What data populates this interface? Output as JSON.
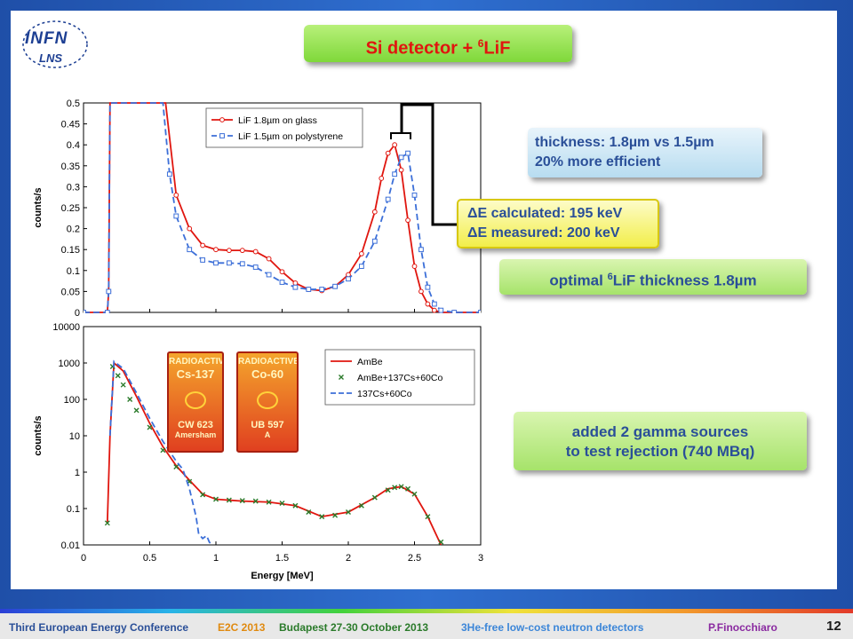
{
  "slide": {
    "title_main": "Si detector + ",
    "title_sup": "6",
    "title_end": "LiF",
    "logo": {
      "top": "INFN",
      "bottom": "LNS"
    },
    "slide_number": "12"
  },
  "callouts": {
    "thickness_line1": "thickness: 1.8µm vs 1.5µm",
    "thickness_line2": "20% more efficient",
    "delta_line1": "ΔE calculated: 195 keV",
    "delta_line2": "ΔE measured: 200 keV",
    "optimal_pre": "optimal ",
    "optimal_sup": "6",
    "optimal_post": "LiF thickness 1.8µm",
    "gamma_line1": "added 2 gamma sources",
    "gamma_line2": "to test rejection (740 MBq)"
  },
  "source_labels": [
    {
      "header": "RADIOACTIVE",
      "isotope": "Cs-137",
      "code": "CW 623",
      "sub": "Amersham"
    },
    {
      "header": "RADIOACTIVE",
      "isotope": "Co-60",
      "code": "UB 597",
      "sub": "A"
    }
  ],
  "footer": {
    "conference": "Third European Energy Conference",
    "short": "E2C 2013",
    "place": "Budapest 27-30 October 2013",
    "talk": "3He-free low-cost neutron detectors",
    "author": "P.Finocchiaro"
  },
  "colors": {
    "red": "#e0160f",
    "blue": "#3c6fd8",
    "green": "#2a7a2a",
    "text_blue": "#2a4f98"
  },
  "chart_data": [
    {
      "type": "line",
      "ylabel": "counts/s",
      "xlim": [
        0,
        3
      ],
      "ylim": [
        0,
        0.5
      ],
      "yticks": [
        "0",
        "0.05",
        "0.1",
        "0.15",
        "0.2",
        "0.25",
        "0.3",
        "0.35",
        "0.4",
        "0.45",
        "0.5"
      ],
      "legend_position": "top-left",
      "series": [
        {
          "name": "LiF 1.8µm on glass",
          "color": "#e0160f",
          "dash": "solid",
          "marker": "circle",
          "x": [
            0.0,
            0.18,
            0.19,
            0.2,
            0.62,
            0.7,
            0.8,
            0.9,
            1.0,
            1.1,
            1.2,
            1.3,
            1.4,
            1.5,
            1.6,
            1.7,
            1.8,
            1.9,
            2.0,
            2.1,
            2.2,
            2.25,
            2.3,
            2.35,
            2.4,
            2.45,
            2.5,
            2.55,
            2.6,
            2.65,
            2.7,
            2.8,
            3.0
          ],
          "y": [
            0.0,
            0.0,
            0.05,
            0.5,
            0.5,
            0.28,
            0.2,
            0.16,
            0.15,
            0.148,
            0.148,
            0.145,
            0.128,
            0.097,
            0.07,
            0.055,
            0.052,
            0.062,
            0.09,
            0.14,
            0.24,
            0.32,
            0.38,
            0.4,
            0.34,
            0.22,
            0.11,
            0.05,
            0.02,
            0.005,
            0.0,
            0.0,
            0.0
          ]
        },
        {
          "name": "LiF 1.5µm on polystyrene",
          "color": "#3c6fd8",
          "dash": "dashed",
          "marker": "square",
          "x": [
            0.0,
            0.18,
            0.19,
            0.2,
            0.6,
            0.65,
            0.7,
            0.8,
            0.9,
            1.0,
            1.1,
            1.2,
            1.3,
            1.4,
            1.5,
            1.6,
            1.7,
            1.8,
            1.9,
            2.0,
            2.1,
            2.2,
            2.3,
            2.35,
            2.4,
            2.45,
            2.5,
            2.55,
            2.6,
            2.65,
            2.7,
            2.8,
            3.0
          ],
          "y": [
            0.0,
            0.0,
            0.05,
            0.5,
            0.5,
            0.33,
            0.23,
            0.15,
            0.125,
            0.118,
            0.118,
            0.116,
            0.108,
            0.09,
            0.072,
            0.06,
            0.055,
            0.055,
            0.062,
            0.08,
            0.11,
            0.17,
            0.27,
            0.33,
            0.37,
            0.38,
            0.28,
            0.15,
            0.06,
            0.02,
            0.005,
            0.0,
            0.0
          ]
        }
      ]
    },
    {
      "type": "line",
      "xlabel": "Energy [MeV]",
      "ylabel": "counts/s",
      "xlim": [
        0,
        3
      ],
      "ylim": [
        0.01,
        10000
      ],
      "yscale": "log",
      "xticks": [
        "0",
        "0.5",
        "1",
        "1.5",
        "2",
        "2.5",
        "3"
      ],
      "yticks": [
        "0.01",
        "0.1",
        "1",
        "10",
        "100",
        "1000",
        "10000"
      ],
      "legend_position": "top-right",
      "series": [
        {
          "name": "AmBe",
          "color": "#e0160f",
          "dash": "solid",
          "x": [
            0.18,
            0.2,
            0.23,
            0.3,
            0.4,
            0.5,
            0.6,
            0.7,
            0.8,
            0.9,
            1.0,
            1.2,
            1.4,
            1.6,
            1.8,
            2.0,
            2.2,
            2.3,
            2.4,
            2.5,
            2.6,
            2.7
          ],
          "y": [
            0.04,
            10,
            1000,
            600,
            120,
            22,
            5,
            1.5,
            0.6,
            0.25,
            0.18,
            0.16,
            0.15,
            0.12,
            0.06,
            0.08,
            0.2,
            0.35,
            0.4,
            0.25,
            0.06,
            0.01
          ]
        },
        {
          "name": "AmBe+137Cs+60Co",
          "color": "#2a7a2a",
          "dash": "none",
          "marker": "x",
          "x": [
            0.18,
            0.22,
            0.26,
            0.3,
            0.35,
            0.4,
            0.5,
            0.6,
            0.7,
            0.8,
            0.9,
            1.0,
            1.1,
            1.2,
            1.3,
            1.4,
            1.5,
            1.6,
            1.7,
            1.8,
            1.9,
            2.0,
            2.1,
            2.2,
            2.3,
            2.35,
            2.4,
            2.45,
            2.5,
            2.6,
            2.7
          ],
          "y": [
            0.04,
            800,
            450,
            250,
            100,
            50,
            17,
            4,
            1.4,
            0.55,
            0.24,
            0.18,
            0.17,
            0.165,
            0.16,
            0.15,
            0.14,
            0.12,
            0.08,
            0.06,
            0.065,
            0.08,
            0.12,
            0.2,
            0.32,
            0.38,
            0.4,
            0.35,
            0.25,
            0.06,
            0.012
          ]
        },
        {
          "name": "137Cs+60Co",
          "color": "#3c6fd8",
          "dash": "dashed",
          "x": [
            0.2,
            0.23,
            0.3,
            0.4,
            0.5,
            0.6,
            0.7,
            0.75,
            0.8,
            0.85,
            0.87,
            0.9,
            0.93,
            0.95,
            0.97
          ],
          "y": [
            10,
            1100,
            700,
            150,
            30,
            7,
            2,
            1.2,
            0.35,
            0.06,
            0.02,
            0.015,
            0.018,
            0.012,
            0.01
          ]
        }
      ]
    }
  ]
}
